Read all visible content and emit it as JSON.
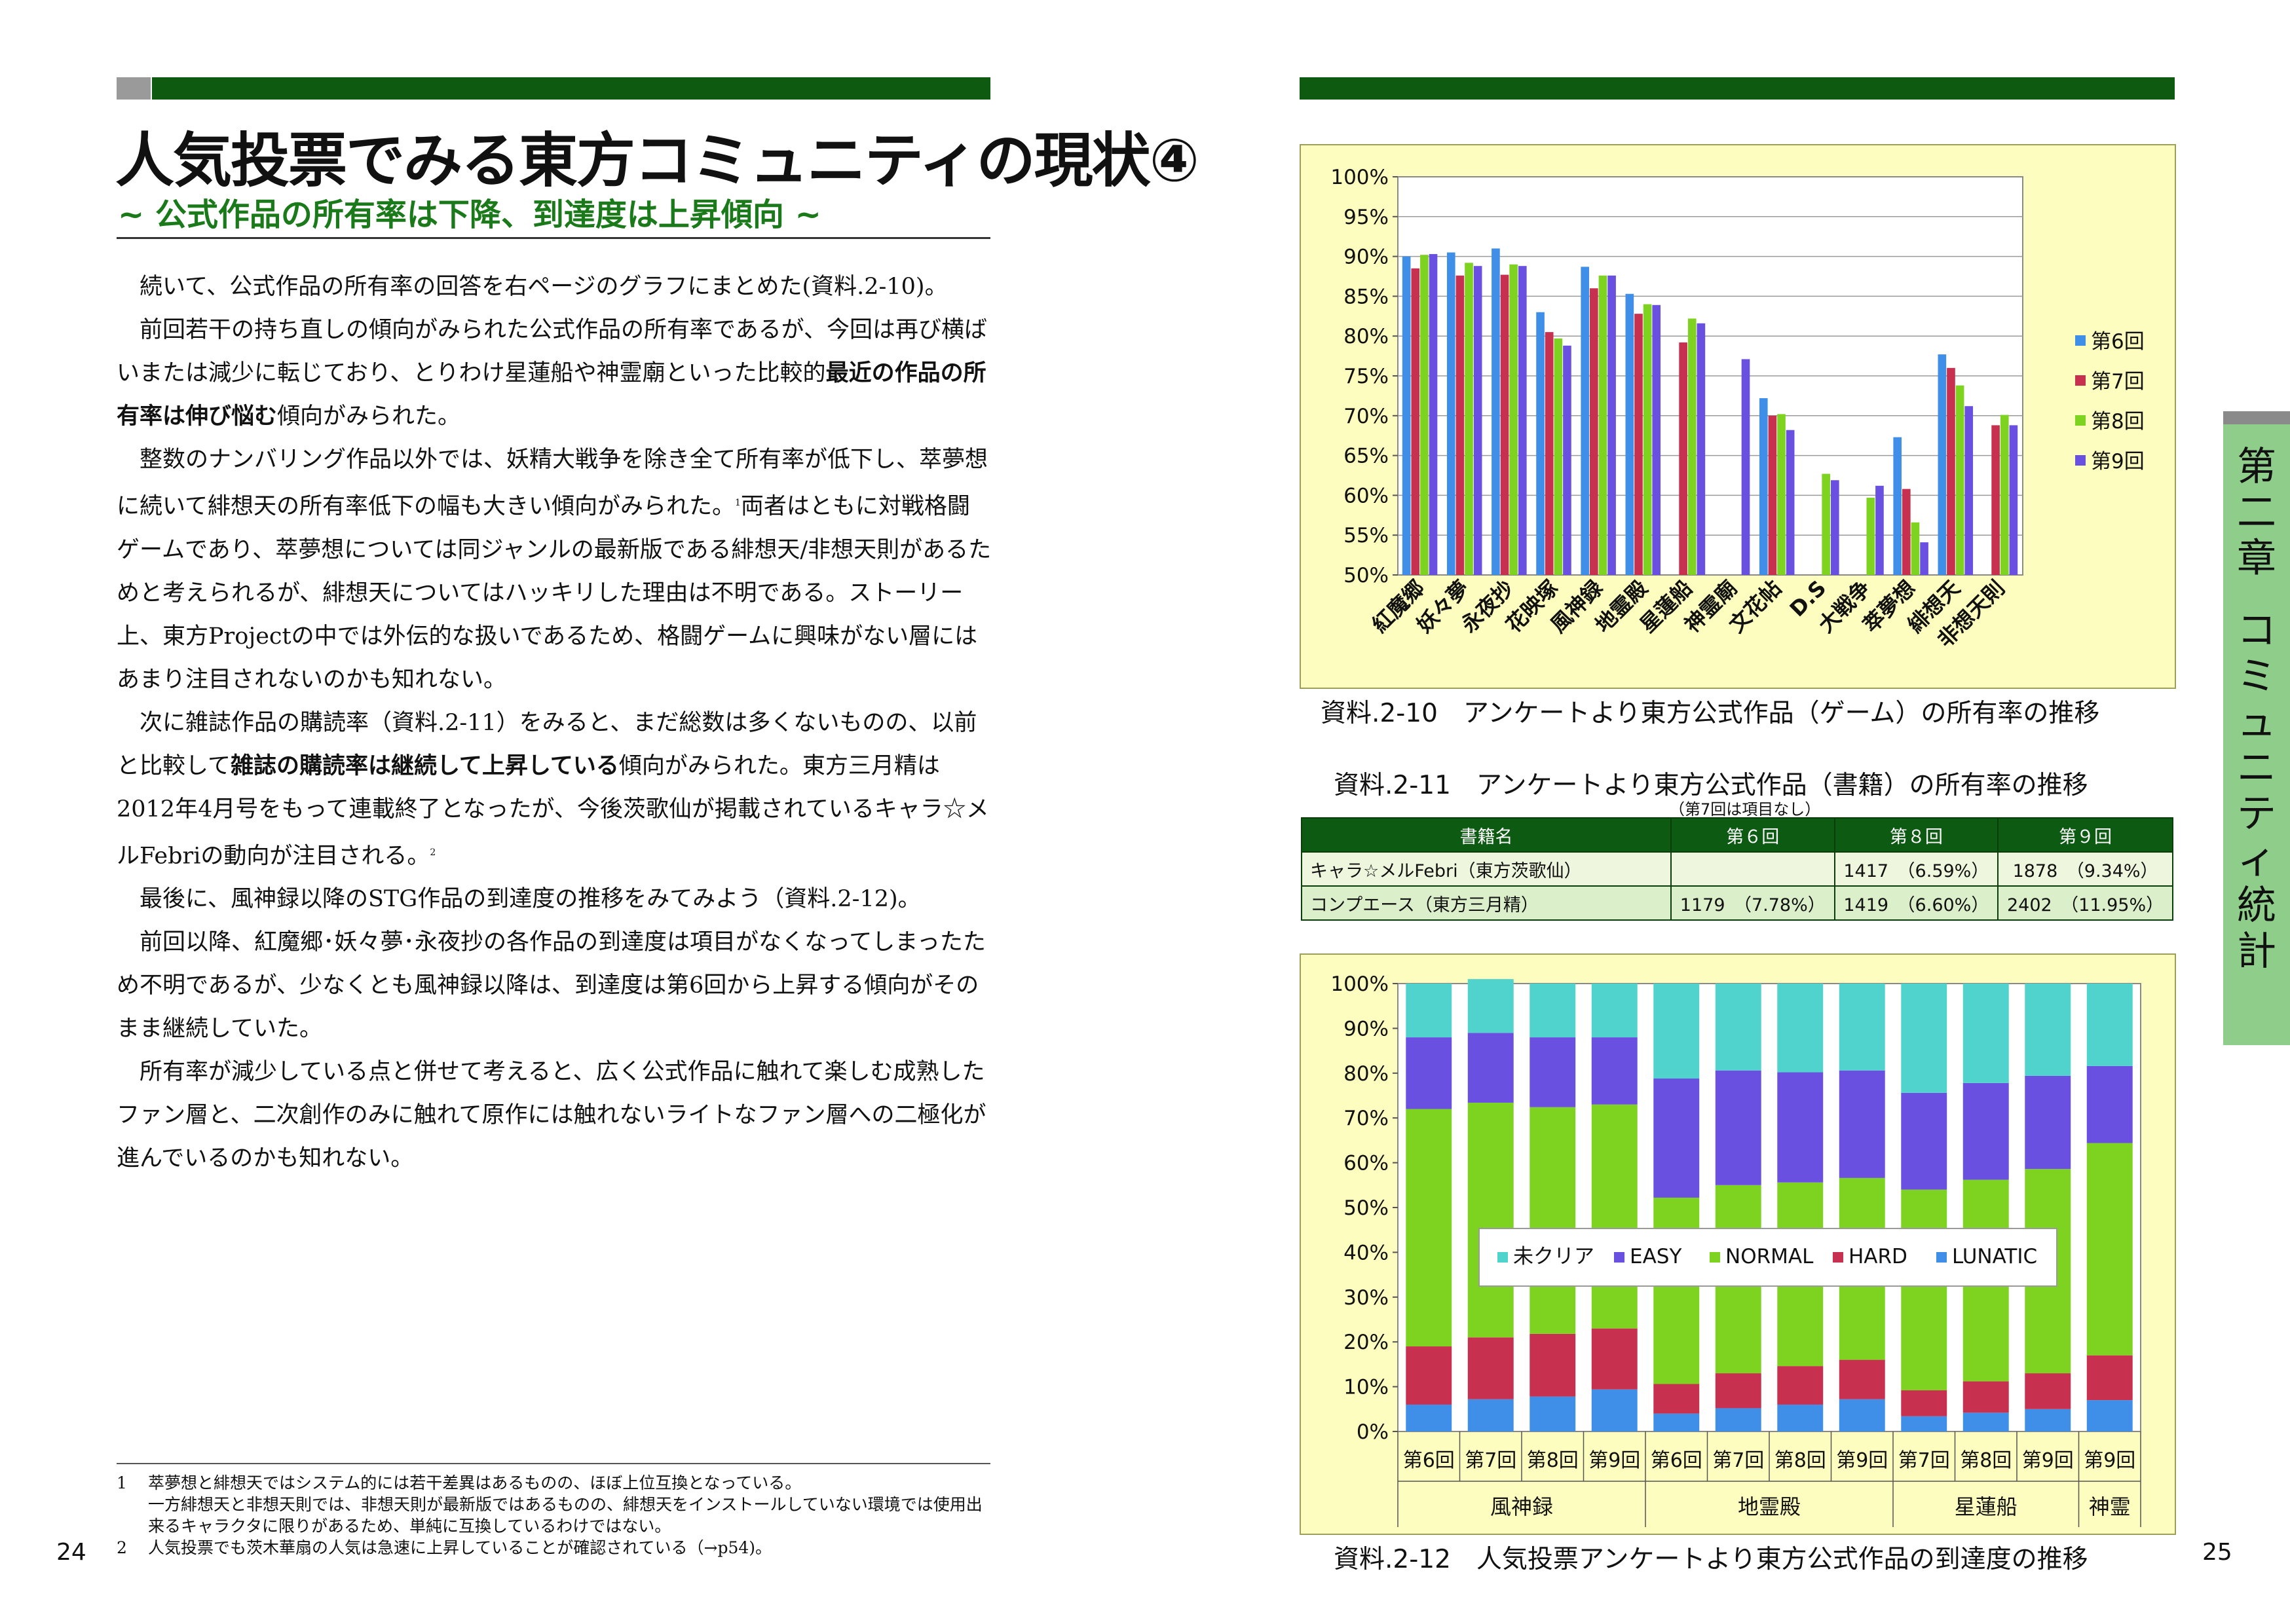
{
  "left_page": {
    "title": "人気投票でみる東方コミュニティの現状④",
    "subtitle": "~ 公式作品の所有率は下降、到達度は上昇傾向 ~",
    "paragraphs": {
      "p1": "続いて、公式作品の所有率の回答を右ページのグラフにまとめた(資料.2-10)。",
      "p2a": "前回若干の持ち直しの傾向がみられた公式作品の所有率であるが、今回は再び横ばいまたは減少に転じており、とりわけ星蓮船や神霊廟といった比較的",
      "p2b": "最近の作品の所有率は伸び悩む",
      "p2c": "傾向がみられた。",
      "p3a": "整数のナンバリング作品以外では、妖精大戦争を除き全て所有率が低下し、萃夢想に続いて緋想天の所有率低下の幅も大きい傾向がみられた。",
      "p3sup": "1",
      "p3b": "両者はともに対戦格闘ゲームであり、萃夢想については同ジャンルの最新版である緋想天/非想天則があるためと考えられるが、緋想天についてはハッキリした理由は不明である。ストーリー上、東方Projectの中では外伝的な扱いであるため、格闘ゲームに興味がない層にはあまり注目されないのかも知れない。",
      "p4a": "次に雑誌作品の購読率（資料.2-11）をみると、まだ総数は多くないものの、以前と比較して",
      "p4b": "雑誌の購読率は継続して上昇している",
      "p4c": "傾向がみられた。東方三月精は2012年4月号をもって連載終了となったが、今後茨歌仙が掲載されているキャラ☆メルFebriの動向が注目される。",
      "p4sup": "2",
      "p5": "最後に、風神録以降のSTG作品の到達度の推移をみてみよう（資料.2-12)。",
      "p6": "前回以降、紅魔郷･妖々夢･永夜抄の各作品の到達度は項目がなくなってしまったため不明であるが、少なくとも風神録以降は、到達度は第6回から上昇する傾向がそのまま継続していた。",
      "p7": "所有率が減少している点と併せて考えると、広く公式作品に触れて楽しむ成熟したファン層と、二次創作のみに触れて原作には触れないライトなファン層への二極化が進んでいるのかも知れない。"
    },
    "footnotes": {
      "n1": "1",
      "f1a": "萃夢想と緋想天ではシステム的には若干差異はあるものの、ほぼ上位互換となっている。",
      "f1b": "一方緋想天と非想天則では、非想天則が最新版ではあるものの、緋想天をインストールしていない環境では使用出来るキャラクタに限りがあるため、単純に互換しているわけではない。",
      "n2": "2",
      "f2": "人気投票でも茨木華扇の人気は急速に上昇していることが確認されている（→p54)。"
    },
    "page_number": "24"
  },
  "right_page": {
    "page_number": "25",
    "side_tab": [
      "第",
      "二",
      "章",
      "",
      "コ",
      "ミ",
      "ュ",
      "ニ",
      "テ",
      "ィ",
      "統",
      "計"
    ],
    "caption_10": "資料.2-10　アンケートより東方公式作品（ゲーム）の所有率の推移",
    "caption_11": "資料.2-11　アンケートより東方公式作品（書籍）の所有率の推移",
    "caption_11_note": "（第7回は項目なし）",
    "caption_12": "資料.2-12　人気投票アンケートより東方公式作品の到達度の推移",
    "book_table": {
      "headers": [
        "書籍名",
        "第６回",
        "第８回",
        "第９回"
      ],
      "rows": [
        [
          "キャラ☆メルFebri（東方茨歌仙）",
          "",
          "1417　（6.59%）",
          "1878　（9.34%）"
        ],
        [
          "コンプエース（東方三月精）",
          "1179　（7.78%）",
          "1419　（6.60%）",
          "2402　（11.95%）"
        ]
      ]
    },
    "colors": {
      "bar6": "#3f8fe8",
      "bar7": "#c7304f",
      "bar8": "#7ed321",
      "bar9": "#6a50e0",
      "uncleared": "#4fd3cc",
      "easy": "#6a50e0",
      "normal": "#7ed321",
      "hard": "#c7304f",
      "lunatic": "#3f8fe8",
      "green_bar": "#0e5a10",
      "tab": "#8fcd8a"
    }
  },
  "chart_data": [
    {
      "type": "bar",
      "title": "",
      "categories": [
        "紅魔郷",
        "妖々夢",
        "永夜抄",
        "花映塚",
        "風神録",
        "地霊殿",
        "星蓮船",
        "神霊廟",
        "文花帖",
        "D.S",
        "大戦争",
        "萃夢想",
        "緋想天",
        "非想天則"
      ],
      "series": [
        {
          "name": "第6回",
          "values": [
            90,
            90.5,
            91,
            83,
            88.7,
            85.3,
            null,
            null,
            72.2,
            null,
            null,
            67.3,
            77.7,
            null
          ]
        },
        {
          "name": "第7回",
          "values": [
            88.5,
            87.6,
            87.7,
            80.5,
            86,
            82.8,
            79.2,
            null,
            70,
            null,
            null,
            60.8,
            76,
            68.8
          ]
        },
        {
          "name": "第8回",
          "values": [
            90.2,
            89.2,
            89,
            79.7,
            87.6,
            84,
            82.2,
            null,
            70.2,
            62.7,
            59.7,
            56.6,
            73.8,
            70.1
          ]
        },
        {
          "name": "第9回",
          "values": [
            90.3,
            88.8,
            88.8,
            78.8,
            87.6,
            83.9,
            81.6,
            77.1,
            68.2,
            61.9,
            61.2,
            54.1,
            71.2,
            68.8
          ]
        }
      ],
      "ylim": [
        50,
        100
      ],
      "yticks": [
        "50%",
        "55%",
        "60%",
        "65%",
        "70%",
        "75%",
        "80%",
        "85%",
        "90%",
        "95%",
        "100%"
      ],
      "legend": "right",
      "grid": true
    },
    {
      "type": "bar",
      "stacked": true,
      "categories": [
        "第6回",
        "第7回",
        "第8回",
        "第9回",
        "第6回",
        "第7回",
        "第8回",
        "第9回",
        "第7回",
        "第8回",
        "第9回",
        "第9回"
      ],
      "groups": [
        {
          "label": "風神録",
          "count": 4
        },
        {
          "label": "地霊殿",
          "count": 4
        },
        {
          "label": "星蓮船",
          "count": 3
        },
        {
          "label": "神霊",
          "count": 1
        }
      ],
      "series": [
        {
          "name": "LUNATIC",
          "values": [
            6,
            7.2,
            7.8,
            9.4,
            4,
            5.2,
            6,
            7.2,
            3.4,
            4.2,
            5,
            7
          ]
        },
        {
          "name": "HARD",
          "values": [
            13,
            13.8,
            14,
            13.6,
            6.6,
            7.8,
            8.6,
            8.8,
            5.8,
            7,
            8,
            10
          ]
        },
        {
          "name": "NORMAL",
          "values": [
            53,
            52.4,
            50.6,
            50,
            41.6,
            42,
            41,
            40.6,
            44.8,
            45,
            45.6,
            47.4
          ]
        },
        {
          "name": "EASY",
          "values": [
            16,
            15.6,
            15.6,
            15,
            26.6,
            25.6,
            24.6,
            24,
            21.6,
            21.6,
            20.8,
            17.2
          ]
        },
        {
          "name": "未クリア",
          "values": [
            12,
            12,
            12,
            12,
            21.2,
            19.4,
            19.8,
            19.4,
            24.4,
            22.2,
            20.6,
            18.4
          ]
        }
      ],
      "legend_order": [
        "未クリア",
        "EASY",
        "NORMAL",
        "HARD",
        "LUNATIC"
      ],
      "ylim": [
        0,
        100
      ],
      "yticks": [
        "0%",
        "10%",
        "20%",
        "30%",
        "40%",
        "50%",
        "60%",
        "70%",
        "80%",
        "90%",
        "100%"
      ],
      "legend": "center"
    }
  ]
}
